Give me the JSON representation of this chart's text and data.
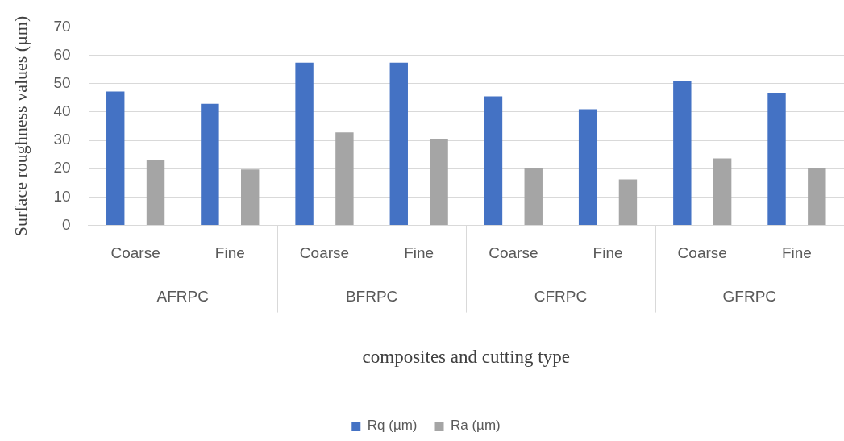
{
  "chart_data": {
    "type": "bar",
    "xlabel": "composites and cutting type",
    "ylabel": "Surface roughness values (µm)",
    "categories": [
      "Coarse",
      "Fine",
      "Coarse",
      "Fine",
      "Coarse",
      "Fine",
      "Coarse",
      "Fine"
    ],
    "series": [
      {
        "name": "Rq (µm)",
        "color": "#4472c4",
        "values": [
          47.2,
          42.9,
          57.4,
          57.4,
          45.5,
          41.0,
          50.8,
          46.8
        ]
      },
      {
        "name": "Ra (µm)",
        "color": "#a5a5a5",
        "values": [
          23.1,
          19.7,
          32.8,
          30.6,
          20.1,
          16.2,
          23.6,
          20.1
        ]
      }
    ],
    "annotations": [
      "AFRPC",
      "BFRPC",
      "CFRPC",
      "GFRPC"
    ],
    "ylim": [
      0,
      70
    ],
    "yticks": [
      0,
      10,
      20,
      30,
      40,
      50,
      60,
      70
    ],
    "grid": "y",
    "legend": "bottom"
  }
}
